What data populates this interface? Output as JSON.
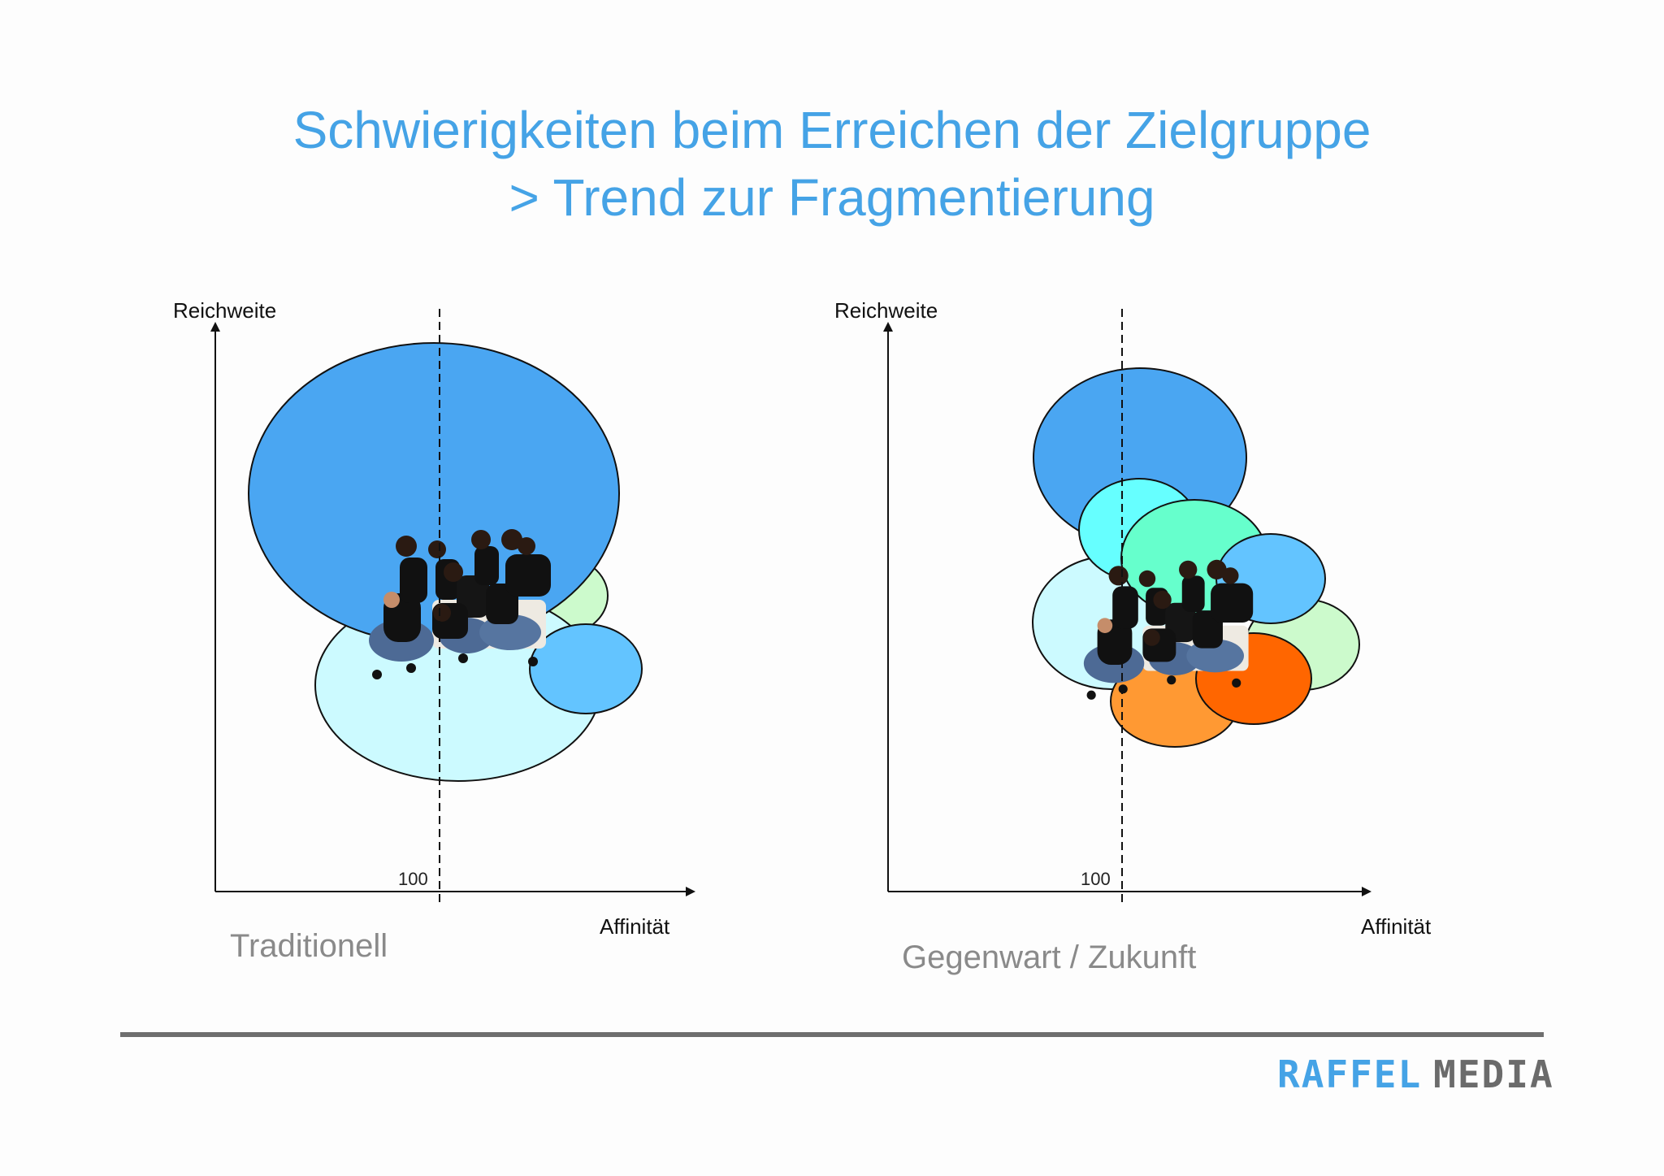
{
  "title": {
    "line1": "Schwierigkeiten beim Erreichen der Zielgruppe",
    "line2": "> Trend zur Fragmentierung"
  },
  "panels": [
    {
      "y_axis_label": "Reichweite",
      "x_axis_label": "Affinität",
      "tick_label": "100",
      "caption": "Traditionell"
    },
    {
      "y_axis_label": "Reichweite",
      "x_axis_label": "Affinität",
      "tick_label": "100",
      "caption": "Gegenwart / Zukunft"
    }
  ],
  "logo": {
    "part1": "RAFFEL",
    "part2": "MEDIA"
  },
  "colors": {
    "title": "#45a3e6",
    "dark_blue": "#4aa6f2",
    "light_cyan": "#ccfaff",
    "light_green": "#ccfacc",
    "mid_blue": "#63c4ff",
    "cyan": "#66ffff",
    "mint": "#66ffcc",
    "orange": "#ff9933",
    "dark_orange": "#ff6600",
    "logo_gray": "#6b6b6b"
  }
}
